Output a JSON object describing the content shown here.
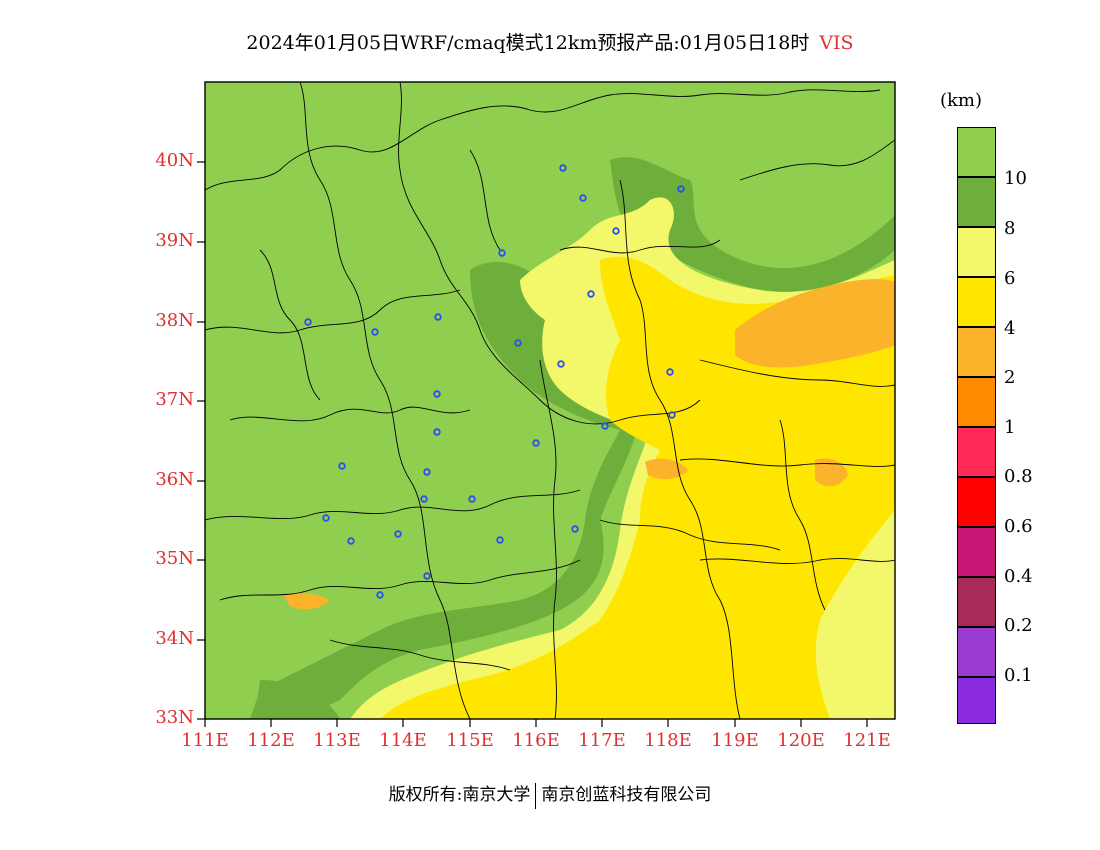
{
  "title": {
    "main": "2024年01月05日WRF/cmaq模式12km预报产品:01月05日18时",
    "variable": "VIS"
  },
  "map": {
    "lat_labels": [
      "40N",
      "39N",
      "38N",
      "37N",
      "36N",
      "35N",
      "34N",
      "33N"
    ],
    "lon_labels": [
      "111E",
      "112E",
      "113E",
      "114E",
      "115E",
      "116E",
      "117E",
      "118E",
      "119E",
      "120E",
      "121E"
    ]
  },
  "legend": {
    "unit": "(km)",
    "levels": [
      {
        "label": "10",
        "color": "#8fce4e"
      },
      {
        "label": "8",
        "color": "#6eae3a"
      },
      {
        "label": "6",
        "color": "#f3f76a"
      },
      {
        "label": "4",
        "color": "#ffe600"
      },
      {
        "label": "2",
        "color": "#fbb32b"
      },
      {
        "label": "1",
        "color": "#ff8a00"
      },
      {
        "label": "0.8",
        "color": "#ff2a58"
      },
      {
        "label": "0.6",
        "color": "#ff0000"
      },
      {
        "label": "0.4",
        "color": "#c81674"
      },
      {
        "label": "0.2",
        "color": "#a82a5a"
      },
      {
        "label": "0.1",
        "color": "#9a3cd0"
      },
      {
        "label": "",
        "color": "#8a2be2"
      }
    ]
  },
  "footer": {
    "copyright": "版权所有:南京大学",
    "company": "南京创蓝科技有限公司"
  },
  "colors": {
    "axis_label": "#e03030",
    "station_marker": "#2a4ff0"
  }
}
